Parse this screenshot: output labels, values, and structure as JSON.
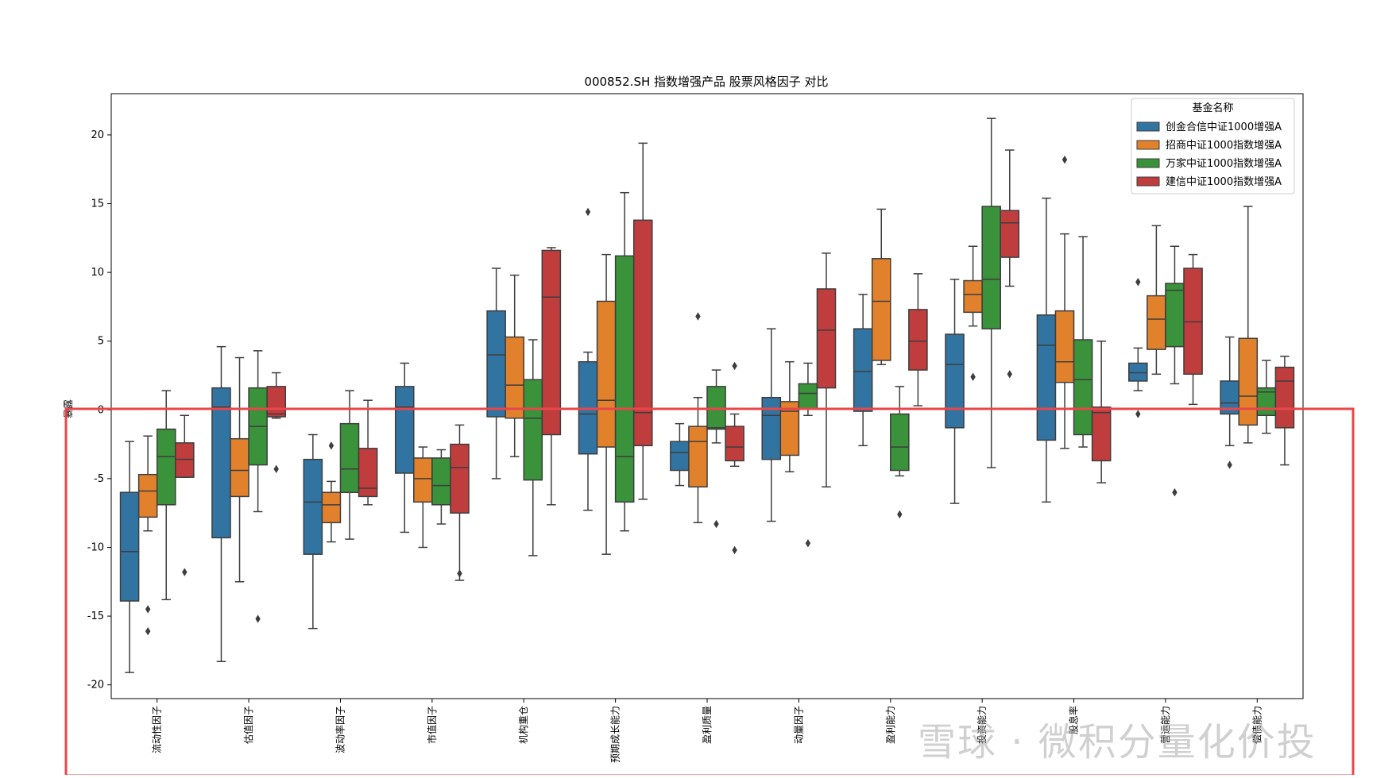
{
  "chart_data": {
    "type": "box",
    "title": "000852.SH 指数增强产品 股票风格因子 对比",
    "xlabel": "",
    "ylabel": "暴露",
    "ylim": [
      -21,
      23
    ],
    "yticks": [
      -20,
      -15,
      -10,
      -5,
      0,
      5,
      10,
      15,
      20
    ],
    "legend": {
      "title": "基金名称",
      "position": "top-right"
    },
    "categories": [
      "流动性因子",
      "估值因子",
      "波动率因子",
      "市值因子",
      "机构重仓",
      "预期成长能力",
      "盈利质量",
      "动量因子",
      "盈利能力",
      "投资能力",
      "股息率",
      "营运能力",
      "偿债能力"
    ],
    "series": [
      {
        "name": "创金合信中证1000增强A",
        "color": "#3274a1",
        "boxes": [
          {
            "whislo": -19.1,
            "q1": -13.9,
            "med": -10.3,
            "q3": -6.0,
            "whishi": -2.3,
            "fliers": []
          },
          {
            "whislo": -18.3,
            "q1": -9.3,
            "med": 0.2,
            "q3": 1.6,
            "whishi": 4.6,
            "fliers": []
          },
          {
            "whislo": -15.9,
            "q1": -10.5,
            "med": -6.7,
            "q3": -3.6,
            "whishi": -1.8,
            "fliers": []
          },
          {
            "whislo": -8.9,
            "q1": -4.6,
            "med": 0.2,
            "q3": 1.7,
            "whishi": 3.4,
            "fliers": []
          },
          {
            "whislo": -5.0,
            "q1": -0.5,
            "med": 4.0,
            "q3": 7.2,
            "whishi": 10.3,
            "fliers": []
          },
          {
            "whislo": -7.3,
            "q1": -3.2,
            "med": -0.3,
            "q3": 3.5,
            "whishi": 4.2,
            "fliers": [
              14.4
            ]
          },
          {
            "whislo": -5.5,
            "q1": -4.4,
            "med": -3.1,
            "q3": -2.3,
            "whishi": -1.0,
            "fliers": []
          },
          {
            "whislo": -8.1,
            "q1": -3.6,
            "med": -0.4,
            "q3": 0.9,
            "whishi": 5.9,
            "fliers": []
          },
          {
            "whislo": -2.6,
            "q1": -0.1,
            "med": 2.8,
            "q3": 5.9,
            "whishi": 8.4,
            "fliers": []
          },
          {
            "whislo": -6.8,
            "q1": -1.3,
            "med": 3.3,
            "q3": 5.5,
            "whishi": 9.5,
            "fliers": []
          },
          {
            "whislo": -6.7,
            "q1": -2.2,
            "med": 4.7,
            "q3": 6.9,
            "whishi": 15.4,
            "fliers": []
          },
          {
            "whislo": 1.4,
            "q1": 2.1,
            "med": 2.7,
            "q3": 3.4,
            "whishi": 4.5,
            "fliers": [
              9.3,
              -0.3
            ]
          },
          {
            "whislo": -2.6,
            "q1": -0.3,
            "med": 0.5,
            "q3": 2.1,
            "whishi": 5.3,
            "fliers": [
              -4.0
            ]
          }
        ]
      },
      {
        "name": "招商中证1000指数增强A",
        "color": "#e1812c",
        "boxes": [
          {
            "whislo": -8.8,
            "q1": -7.8,
            "med": -5.9,
            "q3": -4.7,
            "whishi": -1.9,
            "fliers": [
              -14.5,
              -16.1
            ]
          },
          {
            "whislo": -12.5,
            "q1": -6.3,
            "med": -4.4,
            "q3": -2.1,
            "whishi": 3.8,
            "fliers": []
          },
          {
            "whislo": -9.6,
            "q1": -8.2,
            "med": -6.9,
            "q3": -6.0,
            "whishi": -5.2,
            "fliers": [
              -2.6
            ]
          },
          {
            "whislo": -10.0,
            "q1": -6.7,
            "med": -5.0,
            "q3": -3.5,
            "whishi": -2.7,
            "fliers": []
          },
          {
            "whislo": -3.4,
            "q1": -0.6,
            "med": 1.8,
            "q3": 5.3,
            "whishi": 9.8,
            "fliers": []
          },
          {
            "whislo": -10.5,
            "q1": -2.7,
            "med": 0.7,
            "q3": 7.9,
            "whishi": 11.3,
            "fliers": []
          },
          {
            "whislo": -8.2,
            "q1": -5.6,
            "med": -2.3,
            "q3": -1.2,
            "whishi": 0.9,
            "fliers": [
              6.8
            ]
          },
          {
            "whislo": -4.5,
            "q1": -3.3,
            "med": -0.1,
            "q3": 0.6,
            "whishi": 3.5,
            "fliers": []
          },
          {
            "whislo": 3.3,
            "q1": 3.6,
            "med": 7.9,
            "q3": 11.0,
            "whishi": 14.6,
            "fliers": []
          },
          {
            "whislo": 6.1,
            "q1": 7.1,
            "med": 8.4,
            "q3": 9.4,
            "whishi": 11.9,
            "fliers": [
              2.4
            ]
          },
          {
            "whislo": -2.8,
            "q1": 2.0,
            "med": 3.5,
            "q3": 7.2,
            "whishi": 12.8,
            "fliers": [
              18.2
            ]
          },
          {
            "whislo": 2.6,
            "q1": 4.4,
            "med": 6.6,
            "q3": 8.3,
            "whishi": 13.4,
            "fliers": []
          },
          {
            "whislo": -2.4,
            "q1": -1.1,
            "med": 1.0,
            "q3": 5.2,
            "whishi": 14.8,
            "fliers": []
          }
        ]
      },
      {
        "name": "万家中证1000指数增强A",
        "color": "#3a923a",
        "boxes": [
          {
            "whislo": -13.8,
            "q1": -6.9,
            "med": -3.4,
            "q3": -1.4,
            "whishi": 1.4,
            "fliers": []
          },
          {
            "whislo": -7.4,
            "q1": -4.0,
            "med": -1.2,
            "q3": 1.6,
            "whishi": 4.3,
            "fliers": [
              -15.2
            ]
          },
          {
            "whislo": -9.4,
            "q1": -6.0,
            "med": -4.3,
            "q3": -1.0,
            "whishi": 1.4,
            "fliers": []
          },
          {
            "whislo": -8.3,
            "q1": -6.9,
            "med": -5.5,
            "q3": -3.5,
            "whishi": -2.9,
            "fliers": []
          },
          {
            "whislo": -10.6,
            "q1": -5.1,
            "med": -0.6,
            "q3": 2.2,
            "whishi": 5.1,
            "fliers": []
          },
          {
            "whislo": -8.8,
            "q1": -6.7,
            "med": -3.4,
            "q3": 11.2,
            "whishi": 15.8,
            "fliers": []
          },
          {
            "whislo": -2.4,
            "q1": -1.4,
            "med": -1.3,
            "q3": 1.7,
            "whishi": 2.9,
            "fliers": [
              -8.3
            ]
          },
          {
            "whislo": -0.4,
            "q1": 0.1,
            "med": 1.2,
            "q3": 1.9,
            "whishi": 3.4,
            "fliers": [
              -9.7
            ]
          },
          {
            "whislo": -4.8,
            "q1": -4.4,
            "med": -2.7,
            "q3": -0.3,
            "whishi": 1.7,
            "fliers": [
              -7.6
            ]
          },
          {
            "whislo": -4.2,
            "q1": 5.9,
            "med": 9.5,
            "q3": 14.8,
            "whishi": 21.2,
            "fliers": []
          },
          {
            "whislo": -2.7,
            "q1": -1.8,
            "med": 2.2,
            "q3": 5.1,
            "whishi": 12.6,
            "fliers": []
          },
          {
            "whislo": 1.9,
            "q1": 4.6,
            "med": 8.7,
            "q3": 9.2,
            "whishi": 11.9,
            "fliers": [
              -6.0
            ]
          },
          {
            "whislo": -1.7,
            "q1": -0.4,
            "med": 1.3,
            "q3": 1.6,
            "whishi": 3.6,
            "fliers": []
          }
        ]
      },
      {
        "name": "建信中证1000指数增强A",
        "color": "#c03d3e",
        "boxes": [
          {
            "whislo": -4.9,
            "q1": -4.9,
            "med": -3.6,
            "q3": -2.4,
            "whishi": -0.4,
            "fliers": [
              -11.8
            ]
          },
          {
            "whislo": -0.6,
            "q1": -0.5,
            "med": -0.3,
            "q3": 1.7,
            "whishi": 2.7,
            "fliers": [
              -4.3
            ]
          },
          {
            "whislo": -6.9,
            "q1": -6.3,
            "med": -5.7,
            "q3": -2.8,
            "whishi": 0.7,
            "fliers": []
          },
          {
            "whislo": -12.4,
            "q1": -7.5,
            "med": -4.2,
            "q3": -2.5,
            "whishi": -1.1,
            "fliers": [
              -11.9
            ]
          },
          {
            "whislo": -6.9,
            "q1": -1.8,
            "med": 8.2,
            "q3": 11.6,
            "whishi": 11.8,
            "fliers": []
          },
          {
            "whislo": -6.5,
            "q1": -2.6,
            "med": -0.2,
            "q3": 13.8,
            "whishi": 19.4,
            "fliers": []
          },
          {
            "whislo": -4.1,
            "q1": -3.7,
            "med": -2.7,
            "q3": -1.2,
            "whishi": -0.3,
            "fliers": [
              3.2,
              -10.2
            ]
          },
          {
            "whislo": -5.6,
            "q1": 1.6,
            "med": 5.8,
            "q3": 8.8,
            "whishi": 11.4,
            "fliers": []
          },
          {
            "whislo": 0.3,
            "q1": 2.9,
            "med": 5.0,
            "q3": 7.3,
            "whishi": 9.9,
            "fliers": []
          },
          {
            "whislo": 9.0,
            "q1": 11.1,
            "med": 13.6,
            "q3": 14.5,
            "whishi": 18.9,
            "fliers": [
              2.6
            ]
          },
          {
            "whislo": -5.3,
            "q1": -3.7,
            "med": -0.2,
            "q3": 0.2,
            "whishi": 5.0,
            "fliers": []
          },
          {
            "whislo": 0.4,
            "q1": 2.6,
            "med": 6.4,
            "q3": 10.3,
            "whishi": 11.3,
            "fliers": []
          },
          {
            "whislo": -4.0,
            "q1": -1.3,
            "med": 2.1,
            "q3": 3.1,
            "whishi": 3.9,
            "fliers": []
          }
        ]
      }
    ]
  },
  "annotation": {
    "shape": "rectangle",
    "color": "#e8464b"
  },
  "watermark_text": "雪球 · 微积分量化价投"
}
